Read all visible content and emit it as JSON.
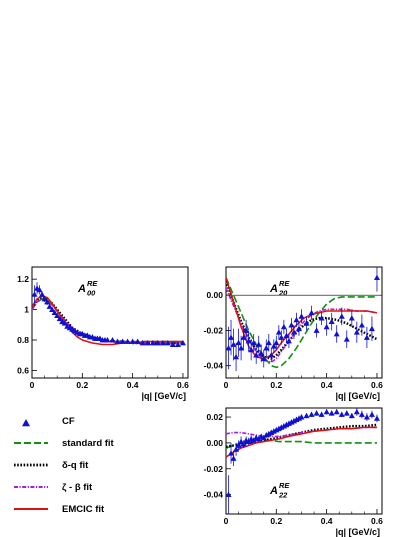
{
  "figure": {
    "xlabel": "|q| [GeV/c]",
    "legend": {
      "position": "lower-left",
      "entries": [
        {
          "label": "CF",
          "style": "triangle",
          "color": "#1010d0"
        },
        {
          "label": "standard fit",
          "style": "dashed",
          "color": "#109010"
        },
        {
          "label": "δ-q fit",
          "style": "dotted",
          "color": "#000000"
        },
        {
          "label": "ζ - β fit",
          "style": "dashdot",
          "color": "#a020e0"
        },
        {
          "label": "EMCIC fit",
          "style": "solid",
          "color": "#e01010"
        }
      ]
    }
  },
  "chart_data": [
    {
      "type": "line",
      "title": "A00 RE",
      "title_main": "A",
      "title_sub": "00",
      "title_sup": "RE",
      "xlabel": "|q| [GeV/c]",
      "xlim": [
        0,
        0.62
      ],
      "ylim": [
        0.55,
        1.28
      ],
      "xticks": [
        0,
        0.2,
        0.4,
        0.6
      ],
      "yticks": [
        0.6,
        0.8,
        1,
        1.2
      ],
      "ytick_labels": [
        "0.6",
        "0.8",
        "1",
        "1.2"
      ],
      "reference_line": null,
      "points": {
        "x": [
          0.01,
          0.02,
          0.03,
          0.04,
          0.05,
          0.06,
          0.07,
          0.08,
          0.09,
          0.1,
          0.11,
          0.12,
          0.13,
          0.14,
          0.15,
          0.16,
          0.17,
          0.18,
          0.19,
          0.2,
          0.21,
          0.22,
          0.23,
          0.24,
          0.25,
          0.26,
          0.27,
          0.28,
          0.29,
          0.3,
          0.32,
          0.34,
          0.36,
          0.38,
          0.4,
          0.42,
          0.44,
          0.46,
          0.48,
          0.5,
          0.52,
          0.54,
          0.56,
          0.58,
          0.6
        ],
        "y": [
          1.1,
          1.14,
          1.13,
          1.1,
          1.07,
          1.05,
          1.02,
          1.0,
          0.98,
          0.96,
          0.94,
          0.92,
          0.91,
          0.89,
          0.88,
          0.87,
          0.86,
          0.85,
          0.84,
          0.84,
          0.83,
          0.83,
          0.82,
          0.82,
          0.81,
          0.81,
          0.81,
          0.8,
          0.8,
          0.8,
          0.8,
          0.79,
          0.79,
          0.79,
          0.79,
          0.79,
          0.78,
          0.78,
          0.78,
          0.78,
          0.78,
          0.78,
          0.77,
          0.77,
          0.78
        ],
        "err": [
          0.06,
          0.04,
          0.03,
          0.02,
          0.02,
          0.02,
          0.015,
          0.015,
          0.01,
          0.01,
          0.01,
          0.01,
          0.01,
          0.01,
          0.01,
          0.01,
          0.01,
          0.01,
          0.01,
          0.01,
          0.01,
          0.01,
          0.01,
          0.01,
          0.01,
          0.01,
          0.01,
          0.01,
          0.01,
          0.01,
          0.01,
          0.01,
          0.01,
          0.01,
          0.01,
          0.01,
          0.01,
          0.01,
          0.01,
          0.01,
          0.01,
          0.01,
          0.01,
          0.01,
          0.01
        ]
      },
      "series": [
        {
          "style": "dashed",
          "color": "#109010",
          "x": [
            0,
            0.02,
            0.04,
            0.06,
            0.08,
            0.1,
            0.12,
            0.14,
            0.16,
            0.18,
            0.2,
            0.24,
            0.28,
            0.32,
            0.36,
            0.4,
            0.45,
            0.5,
            0.55,
            0.6
          ],
          "y": [
            1.0,
            1.05,
            1.07,
            1.06,
            1.03,
            0.99,
            0.95,
            0.91,
            0.88,
            0.85,
            0.83,
            0.81,
            0.8,
            0.79,
            0.79,
            0.79,
            0.79,
            0.79,
            0.79,
            0.79
          ]
        },
        {
          "style": "dotted",
          "color": "#000000",
          "x": [
            0,
            0.02,
            0.04,
            0.06,
            0.08,
            0.1,
            0.12,
            0.14,
            0.16,
            0.18,
            0.2,
            0.24,
            0.28,
            0.32,
            0.36,
            0.4,
            0.45,
            0.5,
            0.55,
            0.6
          ],
          "y": [
            1.01,
            1.06,
            1.08,
            1.07,
            1.04,
            1.0,
            0.96,
            0.92,
            0.88,
            0.86,
            0.84,
            0.82,
            0.8,
            0.79,
            0.79,
            0.78,
            0.78,
            0.78,
            0.78,
            0.78
          ]
        },
        {
          "style": "dashdot",
          "color": "#a020e0",
          "x": [
            0,
            0.02,
            0.04,
            0.06,
            0.08,
            0.1,
            0.12,
            0.14,
            0.16,
            0.18,
            0.2,
            0.24,
            0.28,
            0.32,
            0.36,
            0.4,
            0.45,
            0.5,
            0.55,
            0.6
          ],
          "y": [
            1.0,
            1.05,
            1.07,
            1.06,
            1.03,
            0.99,
            0.95,
            0.91,
            0.88,
            0.86,
            0.84,
            0.81,
            0.8,
            0.79,
            0.79,
            0.78,
            0.78,
            0.78,
            0.78,
            0.78
          ]
        },
        {
          "style": "solid",
          "color": "#e01010",
          "x": [
            0,
            0.02,
            0.04,
            0.06,
            0.08,
            0.1,
            0.12,
            0.14,
            0.16,
            0.18,
            0.2,
            0.24,
            0.28,
            0.32,
            0.36,
            0.4,
            0.45,
            0.5,
            0.55,
            0.6
          ],
          "y": [
            1.02,
            1.07,
            1.09,
            1.08,
            1.04,
            0.99,
            0.94,
            0.89,
            0.85,
            0.82,
            0.8,
            0.78,
            0.77,
            0.77,
            0.78,
            0.78,
            0.79,
            0.79,
            0.79,
            0.79
          ]
        }
      ]
    },
    {
      "type": "line",
      "title": "A20 RE",
      "title_main": "A",
      "title_sub": "20",
      "title_sup": "RE",
      "xlabel": "|q| [GeV/c]",
      "xlim": [
        0,
        0.62
      ],
      "ylim": [
        -0.047,
        0.016
      ],
      "xticks": [
        0,
        0.2,
        0.4,
        0.6
      ],
      "yticks": [
        -0.04,
        -0.02,
        0
      ],
      "ytick_labels": [
        "-0.04",
        "-0.02",
        "0.00"
      ],
      "reference_line": 0,
      "points": {
        "x": [
          0.01,
          0.02,
          0.03,
          0.04,
          0.05,
          0.06,
          0.07,
          0.08,
          0.09,
          0.1,
          0.11,
          0.12,
          0.13,
          0.14,
          0.15,
          0.16,
          0.17,
          0.18,
          0.19,
          0.2,
          0.21,
          0.22,
          0.23,
          0.24,
          0.25,
          0.26,
          0.27,
          0.28,
          0.29,
          0.3,
          0.32,
          0.34,
          0.36,
          0.38,
          0.4,
          0.42,
          0.44,
          0.46,
          0.48,
          0.5,
          0.52,
          0.54,
          0.56,
          0.58,
          0.6
        ],
        "y": [
          -0.03,
          -0.024,
          -0.028,
          -0.035,
          -0.027,
          -0.03,
          -0.024,
          -0.02,
          -0.026,
          -0.031,
          -0.027,
          -0.034,
          -0.028,
          -0.033,
          -0.036,
          -0.03,
          -0.027,
          -0.034,
          -0.029,
          -0.027,
          -0.021,
          -0.024,
          -0.018,
          -0.023,
          -0.026,
          -0.017,
          -0.021,
          -0.014,
          -0.019,
          -0.012,
          -0.016,
          -0.01,
          -0.02,
          -0.013,
          -0.018,
          -0.015,
          -0.022,
          -0.012,
          -0.025,
          -0.013,
          -0.021,
          -0.017,
          -0.024,
          -0.019,
          0.01
        ],
        "err": [
          0.012,
          0.01,
          0.009,
          0.008,
          0.008,
          0.007,
          0.007,
          0.006,
          0.006,
          0.006,
          0.005,
          0.005,
          0.005,
          0.005,
          0.005,
          0.005,
          0.005,
          0.004,
          0.004,
          0.004,
          0.004,
          0.004,
          0.004,
          0.004,
          0.004,
          0.004,
          0.004,
          0.004,
          0.004,
          0.004,
          0.004,
          0.004,
          0.004,
          0.004,
          0.005,
          0.005,
          0.005,
          0.005,
          0.005,
          0.005,
          0.006,
          0.006,
          0.006,
          0.007,
          0.008
        ]
      },
      "series": [
        {
          "style": "dashed",
          "color": "#109010",
          "x": [
            0,
            0.03,
            0.06,
            0.09,
            0.12,
            0.15,
            0.18,
            0.2,
            0.22,
            0.25,
            0.28,
            0.31,
            0.34,
            0.37,
            0.4,
            0.43,
            0.46,
            0.5,
            0.55,
            0.6
          ],
          "y": [
            0.01,
            0.0,
            -0.01,
            -0.02,
            -0.028,
            -0.035,
            -0.04,
            -0.041,
            -0.04,
            -0.036,
            -0.03,
            -0.023,
            -0.016,
            -0.01,
            -0.005,
            -0.002,
            -0.001,
            -0.001,
            -0.001,
            -0.001
          ]
        },
        {
          "style": "dotted",
          "color": "#000000",
          "x": [
            0,
            0.03,
            0.06,
            0.09,
            0.12,
            0.15,
            0.18,
            0.2,
            0.22,
            0.25,
            0.28,
            0.31,
            0.34,
            0.37,
            0.4,
            0.44,
            0.48,
            0.52,
            0.56,
            0.6
          ],
          "y": [
            0.008,
            -0.004,
            -0.015,
            -0.024,
            -0.031,
            -0.035,
            -0.036,
            -0.034,
            -0.031,
            -0.026,
            -0.021,
            -0.017,
            -0.014,
            -0.013,
            -0.013,
            -0.014,
            -0.016,
            -0.019,
            -0.022,
            -0.025
          ]
        },
        {
          "style": "dashdot",
          "color": "#a020e0",
          "x": [
            0,
            0.03,
            0.06,
            0.09,
            0.12,
            0.15,
            0.18,
            0.2,
            0.22,
            0.25,
            0.28,
            0.31,
            0.34,
            0.37,
            0.4,
            0.44,
            0.48,
            0.52,
            0.56,
            0.6
          ],
          "y": [
            0.004,
            -0.006,
            -0.016,
            -0.025,
            -0.032,
            -0.037,
            -0.038,
            -0.036,
            -0.032,
            -0.026,
            -0.02,
            -0.015,
            -0.011,
            -0.009,
            -0.008,
            -0.008,
            -0.008,
            -0.009,
            -0.009,
            -0.01
          ]
        },
        {
          "style": "solid",
          "color": "#e01010",
          "x": [
            0,
            0.03,
            0.06,
            0.09,
            0.12,
            0.15,
            0.18,
            0.2,
            0.22,
            0.25,
            0.28,
            0.31,
            0.34,
            0.37,
            0.4,
            0.44,
            0.48,
            0.52,
            0.56,
            0.6
          ],
          "y": [
            0.01,
            -0.004,
            -0.018,
            -0.029,
            -0.035,
            -0.036,
            -0.034,
            -0.031,
            -0.027,
            -0.022,
            -0.017,
            -0.013,
            -0.011,
            -0.01,
            -0.009,
            -0.009,
            -0.009,
            -0.009,
            -0.009,
            -0.01
          ]
        }
      ]
    },
    {
      "type": "line",
      "title": "A22 RE",
      "title_main": "A",
      "title_sub": "22",
      "title_sup": "RE",
      "xlabel": "|q| [GeV/c]",
      "xlim": [
        0,
        0.62
      ],
      "ylim": [
        -0.055,
        0.027
      ],
      "xticks": [
        0,
        0.2,
        0.4,
        0.6
      ],
      "yticks": [
        -0.04,
        -0.02,
        0,
        0.02
      ],
      "ytick_labels": [
        "-0.04",
        "-0.02",
        "0.00",
        "0.02"
      ],
      "reference_line": null,
      "points": {
        "x": [
          0.01,
          0.02,
          0.03,
          0.04,
          0.05,
          0.06,
          0.07,
          0.08,
          0.09,
          0.1,
          0.11,
          0.12,
          0.13,
          0.14,
          0.15,
          0.16,
          0.17,
          0.18,
          0.19,
          0.2,
          0.21,
          0.22,
          0.23,
          0.24,
          0.25,
          0.26,
          0.27,
          0.28,
          0.29,
          0.3,
          0.32,
          0.34,
          0.36,
          0.38,
          0.4,
          0.42,
          0.44,
          0.46,
          0.48,
          0.5,
          0.52,
          0.54,
          0.56,
          0.58,
          0.6
        ],
        "y": [
          -0.04,
          -0.008,
          -0.012,
          -0.005,
          -0.002,
          0.001,
          -0.001,
          0.002,
          0.001,
          0.003,
          0.002,
          0.004,
          0.003,
          0.005,
          0.004,
          0.006,
          0.007,
          0.008,
          0.009,
          0.01,
          0.011,
          0.012,
          0.013,
          0.014,
          0.015,
          0.016,
          0.017,
          0.018,
          0.019,
          0.02,
          0.021,
          0.022,
          0.023,
          0.022,
          0.024,
          0.023,
          0.024,
          0.022,
          0.023,
          0.021,
          0.024,
          0.022,
          0.02,
          0.022,
          0.019
        ],
        "err": [
          0.015,
          0.008,
          0.006,
          0.005,
          0.004,
          0.004,
          0.003,
          0.003,
          0.003,
          0.003,
          0.002,
          0.002,
          0.002,
          0.002,
          0.002,
          0.002,
          0.002,
          0.002,
          0.002,
          0.002,
          0.002,
          0.002,
          0.002,
          0.002,
          0.002,
          0.002,
          0.002,
          0.002,
          0.002,
          0.002,
          0.002,
          0.002,
          0.002,
          0.002,
          0.002,
          0.002,
          0.002,
          0.002,
          0.002,
          0.002,
          0.003,
          0.003,
          0.003,
          0.003,
          0.003
        ]
      },
      "series": [
        {
          "style": "dashed",
          "color": "#109010",
          "x": [
            0,
            0.03,
            0.06,
            0.09,
            0.12,
            0.15,
            0.18,
            0.21,
            0.25,
            0.3,
            0.35,
            0.4,
            0.45,
            0.5,
            0.55,
            0.6
          ],
          "y": [
            -0.004,
            -0.002,
            0.0,
            0.001,
            0.002,
            0.002,
            0.002,
            0.001,
            0.001,
            0.001,
            0.0,
            0.0,
            0.0,
            0.0,
            0.0,
            0.0
          ]
        },
        {
          "style": "dotted",
          "color": "#000000",
          "x": [
            0,
            0.03,
            0.06,
            0.09,
            0.12,
            0.15,
            0.18,
            0.21,
            0.25,
            0.3,
            0.35,
            0.4,
            0.45,
            0.5,
            0.55,
            0.6
          ],
          "y": [
            -0.003,
            -0.002,
            -0.001,
            0.0,
            0.001,
            0.002,
            0.003,
            0.004,
            0.006,
            0.008,
            0.01,
            0.011,
            0.012,
            0.013,
            0.013,
            0.014
          ]
        },
        {
          "style": "dashdot",
          "color": "#a020e0",
          "x": [
            0,
            0.03,
            0.06,
            0.09,
            0.12,
            0.15,
            0.18,
            0.21,
            0.25,
            0.3,
            0.35,
            0.4,
            0.45,
            0.5,
            0.55,
            0.6
          ],
          "y": [
            0.007,
            0.008,
            0.008,
            0.007,
            0.006,
            0.005,
            0.005,
            0.005,
            0.006,
            0.008,
            0.009,
            0.01,
            0.011,
            0.011,
            0.012,
            0.012
          ]
        },
        {
          "style": "solid",
          "color": "#e01010",
          "x": [
            0,
            0.03,
            0.06,
            0.09,
            0.12,
            0.15,
            0.18,
            0.21,
            0.25,
            0.3,
            0.35,
            0.4,
            0.45,
            0.5,
            0.55,
            0.6
          ],
          "y": [
            -0.011,
            -0.007,
            -0.004,
            -0.002,
            0.0,
            0.001,
            0.002,
            0.003,
            0.005,
            0.007,
            0.009,
            0.01,
            0.011,
            0.011,
            0.012,
            0.012
          ]
        }
      ]
    }
  ]
}
